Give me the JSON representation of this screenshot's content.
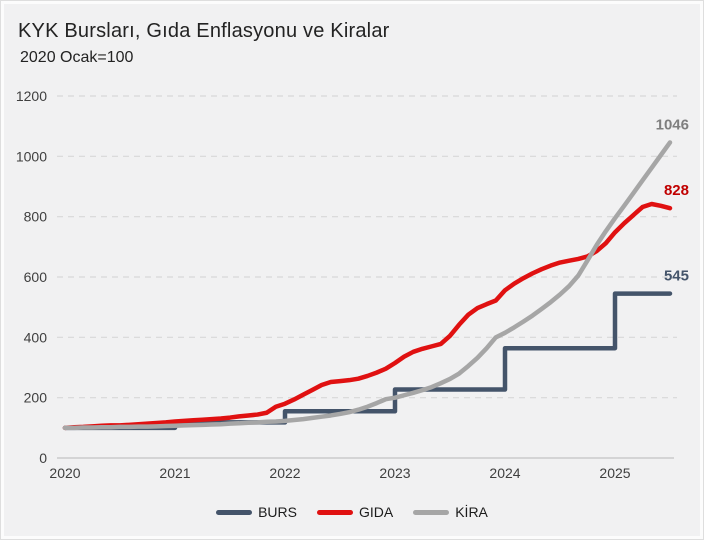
{
  "header": {
    "title": "KYK Bursları, Gıda Enflasyonu ve Kiralar",
    "subtitle": "2020 Ocak=100"
  },
  "legend": {
    "items": [
      {
        "label": "BURS",
        "color": "#44546A"
      },
      {
        "label": "GIDA",
        "color": "#E01111"
      },
      {
        "label": "KİRA",
        "color": "#A6A6A6"
      }
    ]
  },
  "colors": {
    "background": "#F1F1F2",
    "gridline": "#D8D8D8",
    "axis_line": "#C4C4C4",
    "tick_text": "#3F3F3F",
    "title_text": "#232323",
    "burs": "#44546A",
    "gida": "#E01111",
    "kira": "#A6A6A6",
    "burs_label": "#44546A",
    "gida_label": "#C00000",
    "kira_label": "#7F7F7F"
  },
  "chart_data": {
    "type": "line",
    "title": "KYK Bursları, Gıda Enflasyonu ve Kiralar",
    "subtitle": "2020 Ocak=100",
    "index_base": "2020 Ocak = 100",
    "x_unit": "month",
    "x_start": "2020-01",
    "x_end": "2025-07",
    "x_tick_labels": [
      "2020",
      "2021",
      "2022",
      "2023",
      "2024",
      "2025"
    ],
    "y_ticks": [
      0,
      200,
      400,
      600,
      800,
      1000,
      1200
    ],
    "ylim": [
      0,
      1200
    ],
    "grid": "horizontal-dashed",
    "legend_position": "bottom",
    "series": [
      {
        "name": "BURS",
        "color": "#44546A",
        "step": true,
        "end_label": "545",
        "end_label_color": "#44546A",
        "values": [
          100,
          100,
          100,
          100,
          100,
          100,
          100,
          100,
          100,
          100,
          100,
          100,
          118,
          118,
          118,
          118,
          118,
          118,
          118,
          118,
          118,
          118,
          118,
          118,
          155,
          155,
          155,
          155,
          155,
          155,
          155,
          155,
          155,
          155,
          155,
          155,
          227,
          227,
          227,
          227,
          227,
          227,
          227,
          227,
          227,
          227,
          227,
          227,
          364,
          364,
          364,
          364,
          364,
          364,
          364,
          364,
          364,
          364,
          364,
          364,
          545,
          545,
          545,
          545,
          545,
          545,
          545
        ]
      },
      {
        "name": "GIDA",
        "color": "#E01111",
        "step": false,
        "end_label": "828",
        "end_label_color": "#C00000",
        "values": [
          100,
          102,
          103,
          105,
          107,
          108,
          108,
          110,
          112,
          114,
          116,
          118,
          121,
          123,
          125,
          127,
          129,
          131,
          134,
          138,
          141,
          144,
          150,
          170,
          180,
          194,
          210,
          226,
          242,
          252,
          255,
          258,
          263,
          272,
          283,
          296,
          315,
          336,
          352,
          362,
          370,
          378,
          405,
          442,
          475,
          497,
          510,
          522,
          556,
          578,
          596,
          612,
          626,
          638,
          648,
          654,
          660,
          668,
          686,
          712,
          748,
          778,
          805,
          832,
          842,
          836,
          828
        ]
      },
      {
        "name": "KİRA",
        "color": "#A6A6A6",
        "step": false,
        "end_label": "1046",
        "end_label_color": "#7F7F7F",
        "values": [
          100,
          100,
          101,
          101,
          102,
          102,
          103,
          103,
          104,
          104,
          105,
          106,
          107,
          108,
          109,
          110,
          111,
          112,
          114,
          115,
          117,
          118,
          120,
          121,
          123,
          126,
          129,
          133,
          137,
          141,
          146,
          152,
          160,
          170,
          182,
          195,
          200,
          208,
          216,
          225,
          235,
          248,
          262,
          280,
          305,
          332,
          364,
          400,
          415,
          433,
          452,
          472,
          494,
          517,
          542,
          570,
          605,
          655,
          706,
          752,
          795,
          836,
          878,
          920,
          962,
          1004,
          1046
        ]
      }
    ]
  }
}
